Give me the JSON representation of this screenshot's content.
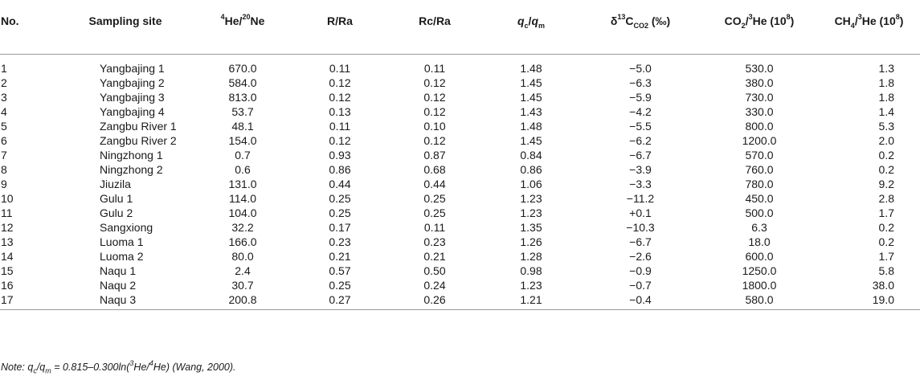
{
  "table": {
    "headers": [
      {
        "key": "no",
        "parts": [
          {
            "t": "No."
          }
        ]
      },
      {
        "key": "site",
        "parts": [
          {
            "t": "Sampling site"
          }
        ]
      },
      {
        "key": "he_ne",
        "parts": [
          {
            "t": "4",
            "s": "sup"
          },
          {
            "t": "He/"
          },
          {
            "t": "20",
            "s": "sup"
          },
          {
            "t": "Ne"
          }
        ]
      },
      {
        "key": "r_ra",
        "parts": [
          {
            "t": "R/Ra"
          }
        ]
      },
      {
        "key": "rc_ra",
        "parts": [
          {
            "t": "Rc/Ra"
          }
        ]
      },
      {
        "key": "qc_qm",
        "parts": [
          {
            "t": "q",
            "s": "i"
          },
          {
            "t": "c",
            "s": "sub"
          },
          {
            "t": "/"
          },
          {
            "t": "q",
            "s": "i"
          },
          {
            "t": "m",
            "s": "sub"
          }
        ]
      },
      {
        "key": "d13c",
        "parts": [
          {
            "t": "δ"
          },
          {
            "t": "13",
            "s": "sup"
          },
          {
            "t": "C"
          },
          {
            "t": "CO2",
            "s": "sub"
          },
          {
            "t": " (‰)"
          }
        ]
      },
      {
        "key": "co2_he",
        "parts": [
          {
            "t": "CO"
          },
          {
            "t": "2",
            "s": "sub"
          },
          {
            "t": "/"
          },
          {
            "t": "3",
            "s": "sup"
          },
          {
            "t": "He (10"
          },
          {
            "t": "8",
            "s": "sup"
          },
          {
            "t": ")"
          }
        ]
      },
      {
        "key": "ch4_he",
        "parts": [
          {
            "t": "CH"
          },
          {
            "t": "4",
            "s": "sub"
          },
          {
            "t": "/"
          },
          {
            "t": "3",
            "s": "sup"
          },
          {
            "t": "He (10"
          },
          {
            "t": "8",
            "s": "sup"
          },
          {
            "t": ")"
          }
        ]
      }
    ],
    "rows": [
      [
        "1",
        "Yangbajing 1",
        "670.0",
        "0.11",
        "0.11",
        "1.48",
        "−5.0",
        "530.0",
        "1.3"
      ],
      [
        "2",
        "Yangbajing 2",
        "584.0",
        "0.12",
        "0.12",
        "1.45",
        "−6.3",
        "380.0",
        "1.8"
      ],
      [
        "3",
        "Yangbajing 3",
        "813.0",
        "0.12",
        "0.12",
        "1.45",
        "−5.9",
        "730.0",
        "1.8"
      ],
      [
        "4",
        "Yangbajing 4",
        "53.7",
        "0.13",
        "0.12",
        "1.43",
        "−4.2",
        "330.0",
        "1.4"
      ],
      [
        "5",
        "Zangbu River 1",
        "48.1",
        "0.11",
        "0.10",
        "1.48",
        "−5.5",
        "800.0",
        "5.3"
      ],
      [
        "6",
        "Zangbu River 2",
        "154.0",
        "0.12",
        "0.12",
        "1.45",
        "−6.2",
        "1200.0",
        "2.0"
      ],
      [
        "7",
        "Ningzhong 1",
        "0.7",
        "0.93",
        "0.87",
        "0.84",
        "−6.7",
        "570.0",
        "0.2"
      ],
      [
        "8",
        "Ningzhong 2",
        "0.6",
        "0.86",
        "0.68",
        "0.86",
        "−3.9",
        "760.0",
        "0.2"
      ],
      [
        "9",
        "Jiuzila",
        "131.0",
        "0.44",
        "0.44",
        "1.06",
        "−3.3",
        "780.0",
        "9.2"
      ],
      [
        "10",
        "Gulu 1",
        "114.0",
        "0.25",
        "0.25",
        "1.23",
        "−11.2",
        "450.0",
        "2.8"
      ],
      [
        "11",
        "Gulu 2",
        "104.0",
        "0.25",
        "0.25",
        "1.23",
        "+0.1",
        "500.0",
        "1.7"
      ],
      [
        "12",
        "Sangxiong",
        "32.2",
        "0.17",
        "0.11",
        "1.35",
        "−10.3",
        "6.3",
        "0.2"
      ],
      [
        "13",
        "Luoma 1",
        "166.0",
        "0.23",
        "0.23",
        "1.26",
        "−6.7",
        "18.0",
        "0.2"
      ],
      [
        "14",
        "Luoma 2",
        "80.0",
        "0.21",
        "0.21",
        "1.28",
        "−2.6",
        "600.0",
        "1.7"
      ],
      [
        "15",
        "Naqu 1",
        "2.4",
        "0.57",
        "0.50",
        "0.98",
        "−0.9",
        "1250.0",
        "5.8"
      ],
      [
        "16",
        "Naqu 2",
        "30.7",
        "0.25",
        "0.24",
        "1.23",
        "−0.7",
        "1800.0",
        "38.0"
      ],
      [
        "17",
        "Naqu 3",
        "200.8",
        "0.27",
        "0.26",
        "1.21",
        "−0.4",
        "580.0",
        "19.0"
      ]
    ]
  },
  "note": {
    "parts": [
      {
        "t": "Note: q"
      },
      {
        "t": "c",
        "s": "sub"
      },
      {
        "t": "/q"
      },
      {
        "t": "m",
        "s": "sub"
      },
      {
        "t": " = 0.815–0.300ln("
      },
      {
        "t": "3",
        "s": "sup"
      },
      {
        "t": "He/"
      },
      {
        "t": "4",
        "s": "sup"
      },
      {
        "t": "He) (Wang, 2000)."
      }
    ]
  }
}
